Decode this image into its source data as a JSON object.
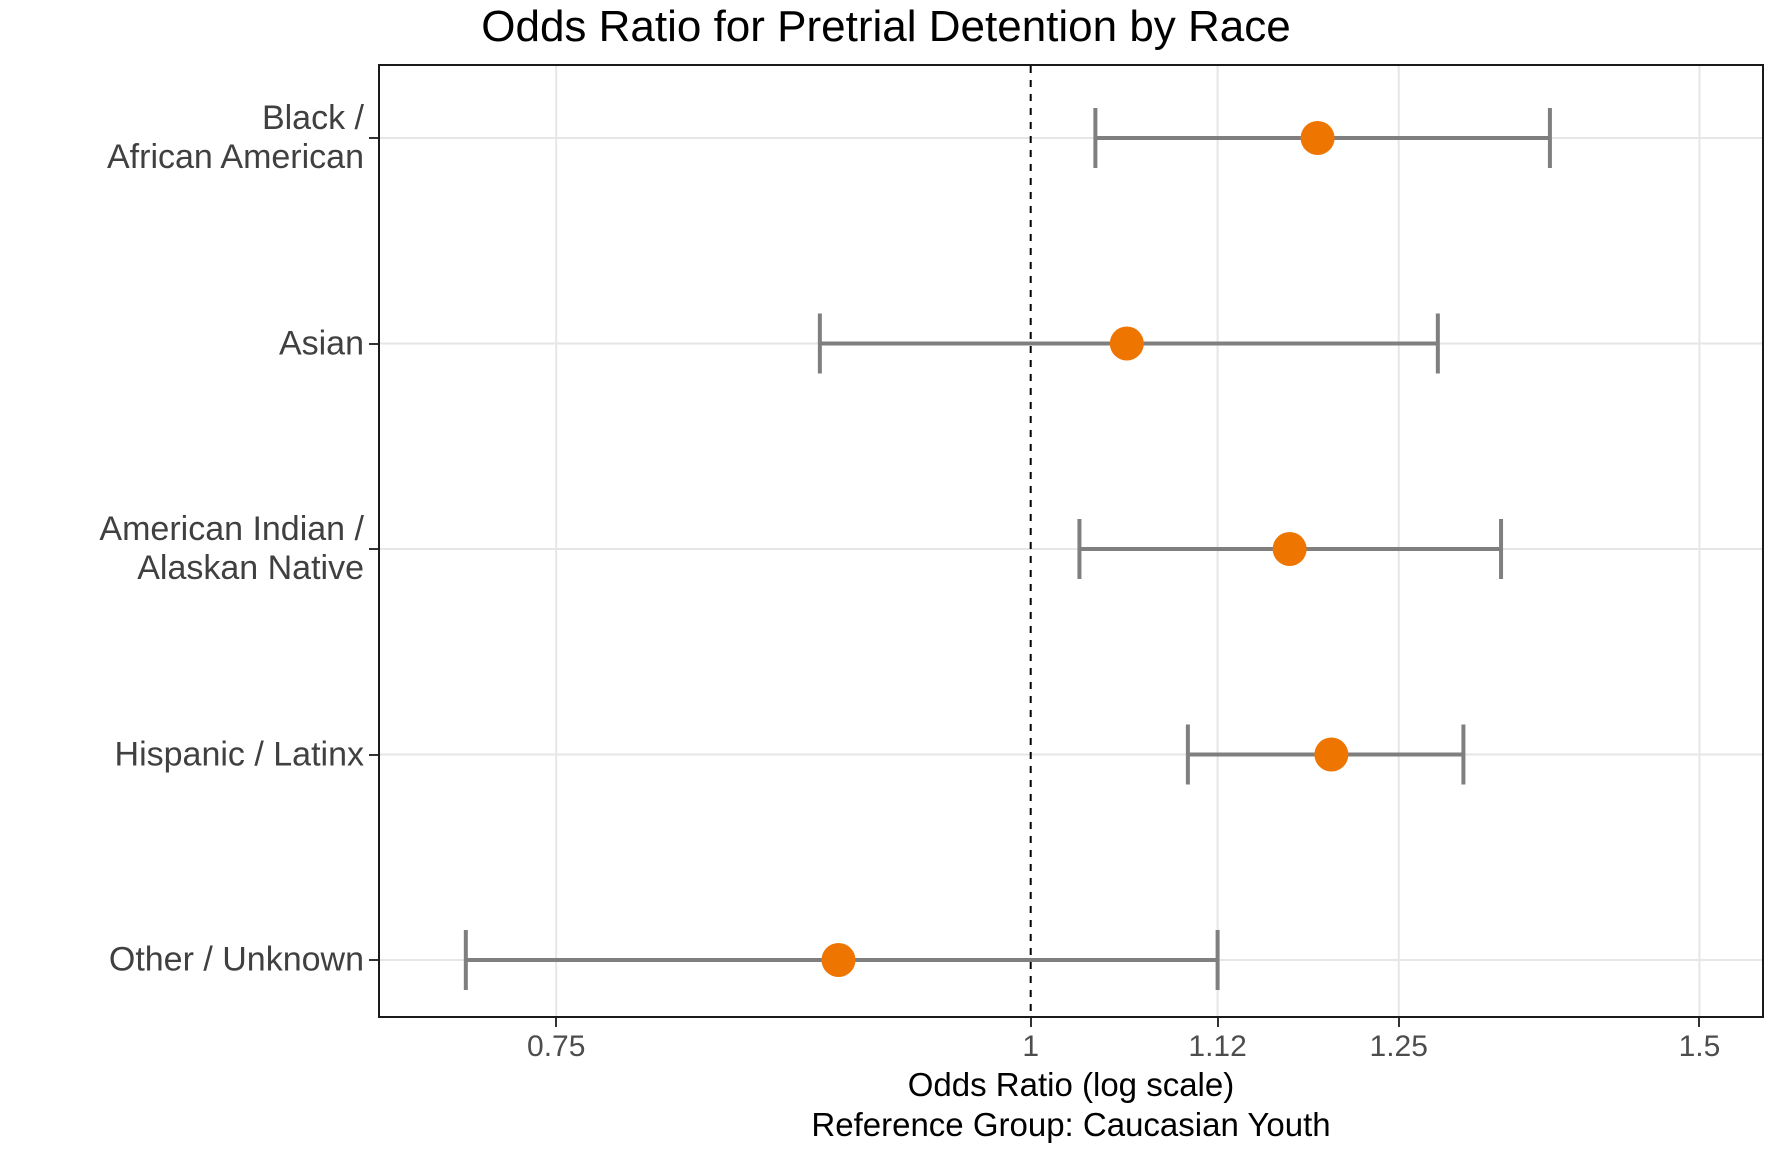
{
  "title": "Odds Ratio for Pretrial Detention by Race",
  "chart_data": {
    "type": "scatter",
    "subtype": "forest-plot-error-bars",
    "orientation": "horizontal",
    "x_scale": "log",
    "title": "Odds Ratio for Pretrial Detention by Race",
    "xlabel": "Odds Ratio (log scale)",
    "xlabel_note": "Reference Group: Caucasian Youth",
    "ylabel": "",
    "categories": [
      "Black / African American",
      "Asian",
      "American Indian / Alaskan Native",
      "Hispanic / Latinx",
      "Other / Unknown"
    ],
    "category_display_lines": [
      [
        "Black /",
        "African American"
      ],
      [
        "Asian"
      ],
      [
        "American Indian /",
        "Alaskan Native"
      ],
      [
        "Hispanic / Latinx"
      ],
      [
        "Other / Unknown"
      ]
    ],
    "series": [
      {
        "name": "Odds Ratio point estimate with confidence interval",
        "odds_ratio": [
          1.19,
          1.06,
          1.17,
          1.2,
          0.89
        ],
        "ci_lower": [
          1.04,
          0.88,
          1.03,
          1.1,
          0.71
        ],
        "ci_upper": [
          1.37,
          1.28,
          1.33,
          1.3,
          1.12
        ]
      }
    ],
    "reference_line_x": 1,
    "x_ticks": [
      0.75,
      1,
      1.12,
      1.25,
      1.5
    ],
    "x_tick_labels": [
      "0.75",
      "1",
      "1.12",
      "1.25",
      "1.5"
    ],
    "xlim": [
      0.674,
      1.558
    ],
    "grid": true,
    "legend_position": "none",
    "colors": {
      "point": "#EE7600",
      "error_bar": "#7F7F7F",
      "reference_line": "#000000",
      "gridline": "#E6E6E6",
      "panel_border": "#1A1A1A",
      "axis_text": "#404040",
      "title_text": "#000000",
      "background": "#FFFFFF"
    }
  }
}
